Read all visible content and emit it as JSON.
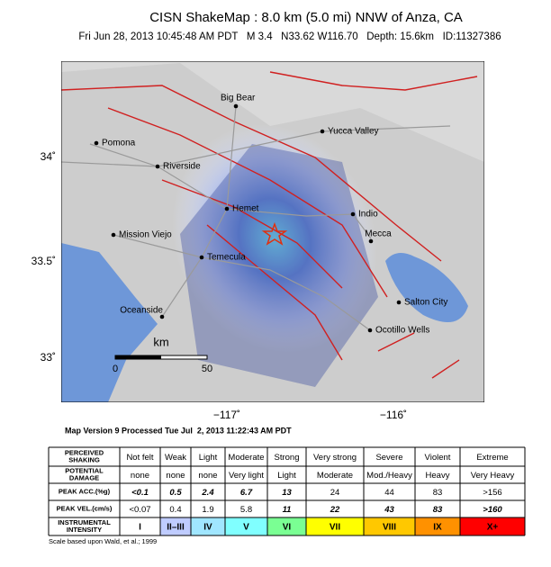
{
  "header": {
    "title": "CISN ShakeMap : 8.0 km (5.0 mi) NNW of Anza, CA",
    "subtitle": "Fri Jun 28, 2013 10:45:48 AM PDT   M 3.4   N33.62 W116.70   Depth: 15.6km   ID:11327386"
  },
  "map": {
    "lat_labels": [
      "34˚",
      "33.5˚",
      "33˚"
    ],
    "lon_labels": [
      "−117˚",
      "−116˚"
    ],
    "cities": [
      "Big Bear",
      "Yucca Valley",
      "Pomona",
      "Riverside",
      "Hemet",
      "Indio",
      "Mecca",
      "Mission Viejo",
      "Temecula",
      "Oceanside",
      "Salton City",
      "Ocotillo Wells"
    ],
    "scale": {
      "unit": "km",
      "ticks": [
        "0",
        "50"
      ]
    }
  },
  "version": "Map Version 9 Processed Tue Jul  2, 2013 11:22:43 AM PDT",
  "table": {
    "rows": [
      {
        "label": [
          "PERCEIVED",
          "SHAKING"
        ],
        "cells": [
          "Not felt",
          "Weak",
          "Light",
          "Moderate",
          "Strong",
          "Very strong",
          "Severe",
          "Violent",
          "Extreme"
        ]
      },
      {
        "label": [
          "POTENTIAL",
          "DAMAGE"
        ],
        "cells": [
          "none",
          "none",
          "none",
          "Very light",
          "Light",
          "Moderate",
          "Mod./Heavy",
          "Heavy",
          "Very Heavy"
        ]
      },
      {
        "label": [
          "PEAK ACC.(%g)"
        ],
        "cells": [
          "<0.1",
          "0.5",
          "2.4",
          "6.7",
          "13",
          "24",
          "44",
          "83",
          ">156"
        ]
      },
      {
        "label": [
          "PEAK VEL.(cm/s)"
        ],
        "cells": [
          "<0.07",
          "0.4",
          "1.9",
          "5.8",
          "11",
          "22",
          "43",
          "83",
          ">160"
        ]
      },
      {
        "label": [
          "INSTRUMENTAL",
          "INTENSITY"
        ],
        "cells": [
          "I",
          "II–III",
          "IV",
          "V",
          "VI",
          "VII",
          "VIII",
          "IX",
          "X+"
        ]
      }
    ]
  },
  "footnote": "Scale based upon Wald, et al.; 1999"
}
